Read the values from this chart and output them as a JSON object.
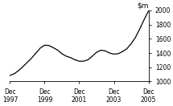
{
  "ylim": [
    1000,
    2000
  ],
  "yticks": [
    1000,
    1200,
    1400,
    1600,
    1800,
    2000
  ],
  "xtick_positions": [
    0,
    2,
    4,
    6,
    8
  ],
  "xtick_labels": [
    "Dec\n1997",
    "Dec\n1999",
    "Dec\n2001",
    "Dec\n2003",
    "Dec\n2005"
  ],
  "line_color": "#000000",
  "background_color": "#ffffff",
  "x": [
    0,
    0.25,
    0.5,
    0.75,
    1.0,
    1.25,
    1.5,
    1.75,
    2.0,
    2.25,
    2.5,
    2.75,
    3.0,
    3.25,
    3.5,
    3.75,
    4.0,
    4.25,
    4.5,
    4.75,
    5.0,
    5.25,
    5.5,
    5.75,
    6.0,
    6.25,
    6.5,
    6.75,
    7.0,
    7.25,
    7.5,
    7.75,
    8.0
  ],
  "y": [
    1085,
    1110,
    1155,
    1210,
    1270,
    1330,
    1400,
    1470,
    1510,
    1505,
    1475,
    1440,
    1390,
    1355,
    1335,
    1305,
    1285,
    1285,
    1305,
    1355,
    1410,
    1440,
    1430,
    1400,
    1385,
    1390,
    1420,
    1460,
    1530,
    1620,
    1740,
    1870,
    1990
  ],
  "title_fontsize": 6.5,
  "tick_fontsize": 5.5,
  "linewidth": 0.9
}
